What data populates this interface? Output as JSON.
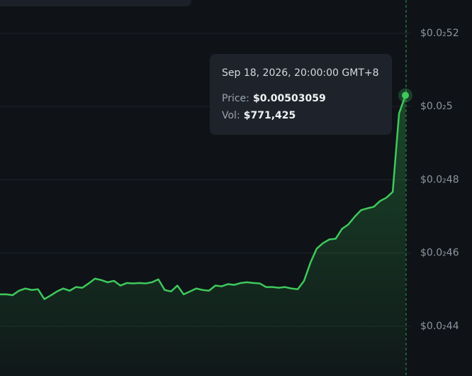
{
  "chart_data": {
    "type": "area",
    "values": [
      0.004487,
      0.004487,
      0.004485,
      0.004497,
      0.004503,
      0.004499,
      0.004501,
      0.004474,
      0.004484,
      0.004495,
      0.004503,
      0.004497,
      0.004507,
      0.004505,
      0.004517,
      0.00453,
      0.004526,
      0.00452,
      0.004524,
      0.004511,
      0.004518,
      0.004517,
      0.004518,
      0.004517,
      0.00452,
      0.004528,
      0.004499,
      0.004495,
      0.004511,
      0.004487,
      0.004495,
      0.004503,
      0.004499,
      0.004497,
      0.004511,
      0.004509,
      0.004515,
      0.004513,
      0.004518,
      0.00452,
      0.004518,
      0.004517,
      0.004507,
      0.004507,
      0.004505,
      0.004507,
      0.004503,
      0.004501,
      0.004524,
      0.004573,
      0.004612,
      0.004627,
      0.004637,
      0.004639,
      0.004666,
      0.004678,
      0.004699,
      0.004717,
      0.004722,
      0.004726,
      0.004742,
      0.004751,
      0.004767,
      0.004981,
      0.00503059
    ],
    "color": "#3ec95c",
    "ylim": [
      0.004264,
      0.005291
    ],
    "yticks": [
      {
        "value": 0.0052,
        "label": "$0.0₂52"
      },
      {
        "value": 0.005,
        "label": "$0.0₂5"
      },
      {
        "value": 0.0048,
        "label": "$0.0₂48"
      },
      {
        "value": 0.0046,
        "label": "$0.0₂46"
      },
      {
        "value": 0.0044,
        "label": "$0.0₂44"
      }
    ],
    "grid": true,
    "tooltip": {
      "date": "Sep 18, 2026, 20:00:00 GMT+8",
      "price_label": "Price:",
      "price": "$0.00503059",
      "vol_label": "Vol:",
      "vol": "$771,425"
    }
  }
}
